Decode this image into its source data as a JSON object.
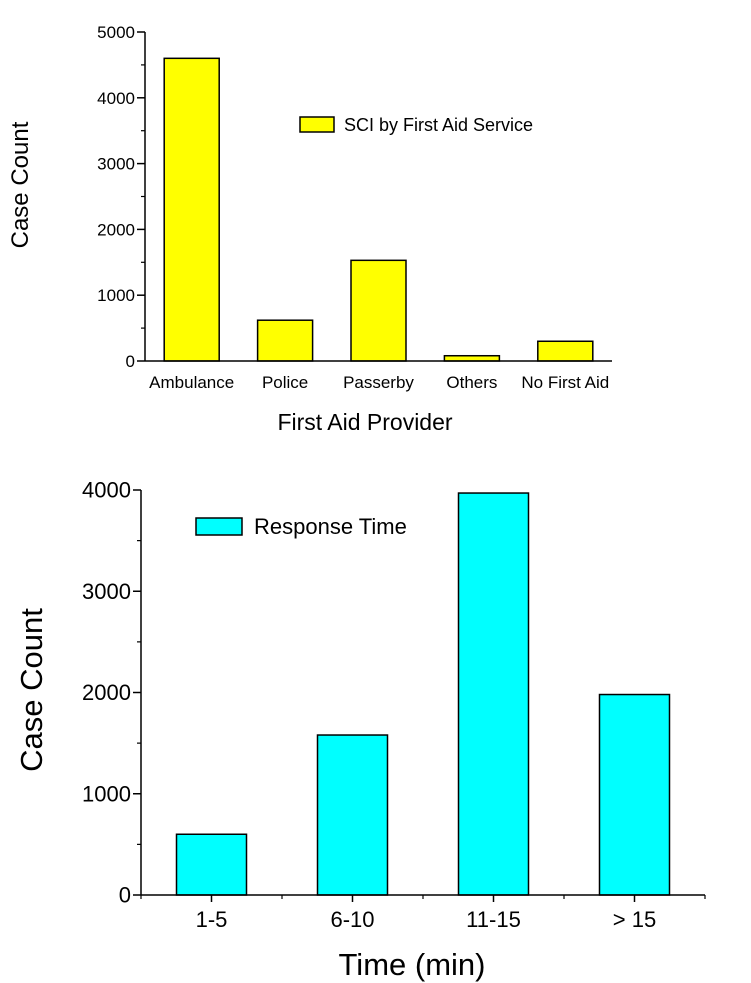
{
  "chart_data": [
    {
      "type": "bar",
      "categories": [
        "Ambulance",
        "Police",
        "Passerby",
        "Others",
        "No First Aid"
      ],
      "values": [
        4600,
        620,
        1530,
        80,
        300
      ],
      "xlabel": "First Aid Provider",
      "ylabel": "Case Count",
      "ylim": [
        0,
        5000
      ],
      "yticks": [
        0,
        1000,
        2000,
        3000,
        4000,
        5000
      ],
      "legend": "SCI by First Aid Service",
      "legend_position": "top-right",
      "color": "#ffff00",
      "grid": false
    },
    {
      "type": "bar",
      "categories": [
        "1-5",
        "6-10",
        "11-15",
        "> 15"
      ],
      "values": [
        600,
        1580,
        3970,
        1980
      ],
      "xlabel": "Time (min)",
      "ylabel": "Case Count",
      "ylim": [
        0,
        4000
      ],
      "yticks": [
        0,
        1000,
        2000,
        3000,
        4000
      ],
      "legend": "Response Time",
      "legend_position": "top-left",
      "color": "#00ffff",
      "grid": false
    }
  ]
}
